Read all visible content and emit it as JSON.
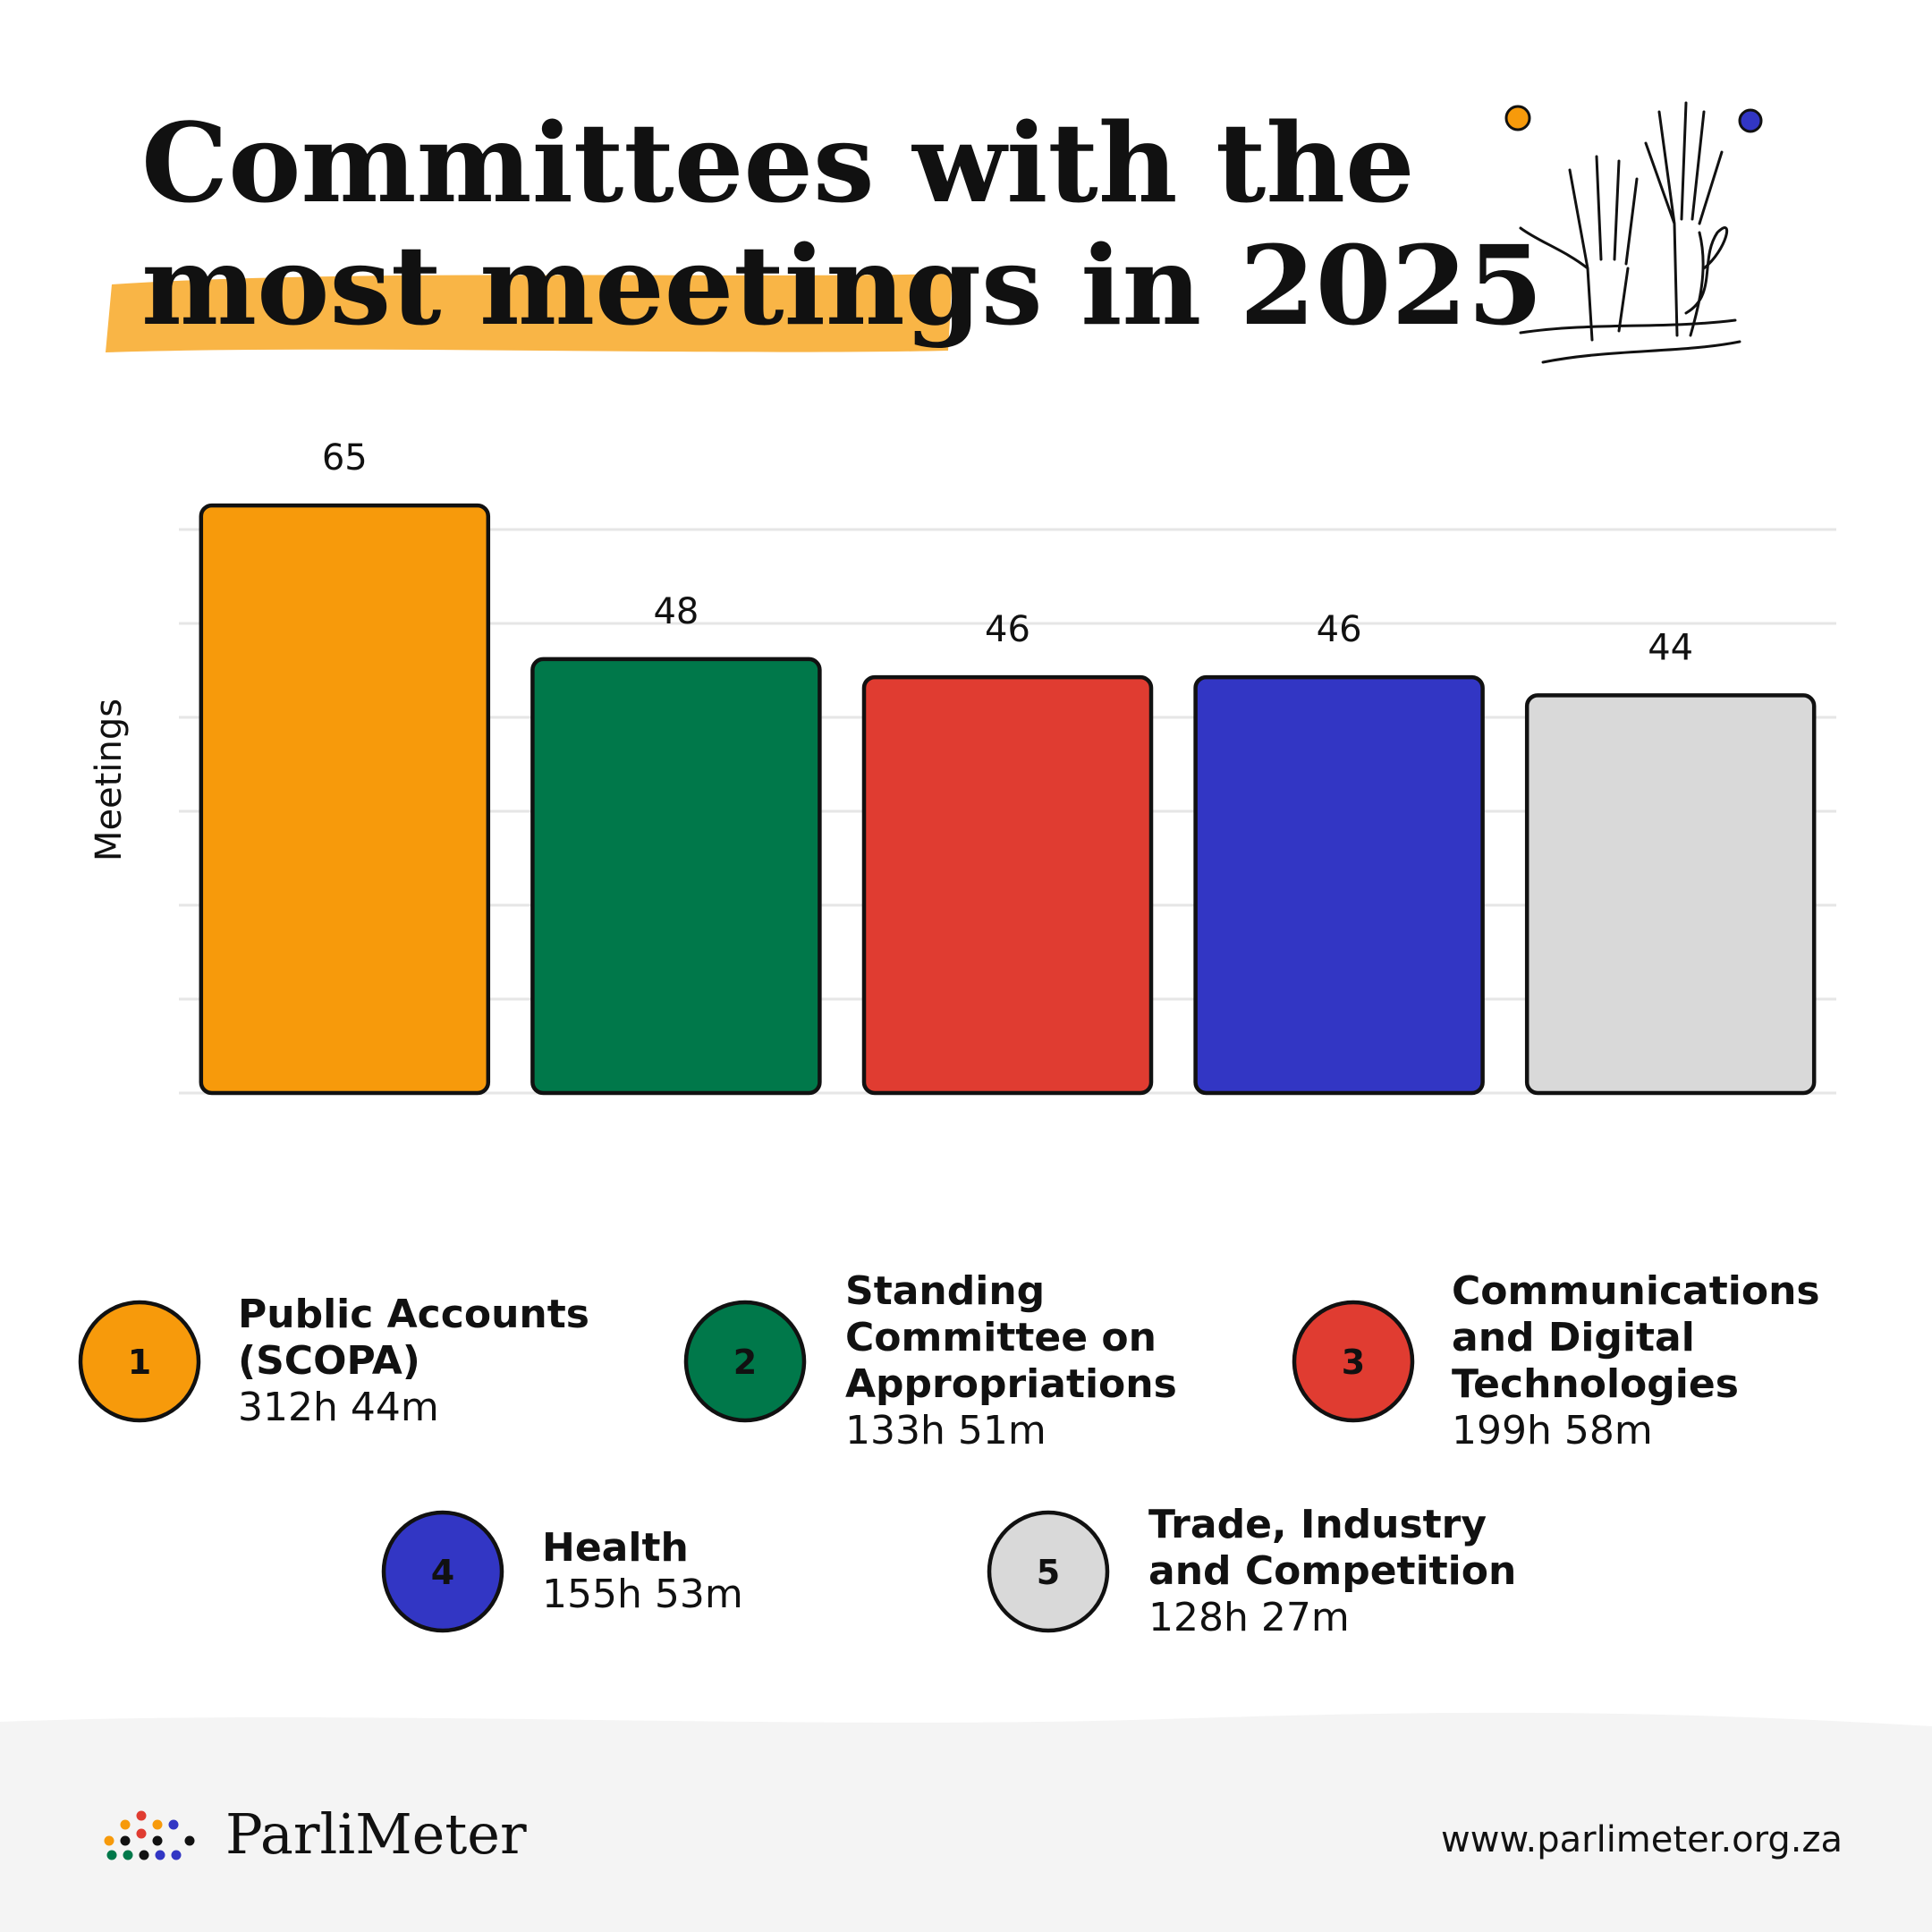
{
  "chart_data": {
    "type": "bar",
    "title_lines": [
      "Committees with the",
      "most meetings",
      "in 2025"
    ],
    "y_label": "Meetings",
    "categories": [
      "Public Accounts (SCOPA)",
      "Standing Committee on Appropriations",
      "Communications and Digital Technologies",
      "Health",
      "Trade, Industry and Competition"
    ],
    "values": [
      65,
      48,
      46,
      46,
      44
    ],
    "ranks": [
      1,
      2,
      3,
      4,
      5
    ],
    "durations": [
      "312h 44m",
      "133h 51m",
      "199h 58m",
      "155h 53m",
      "128h 27m"
    ],
    "colors": [
      "#f79a0b",
      "#00784a",
      "#e03c31",
      "#3236c4",
      "#d9d9d9"
    ],
    "ylim": [
      0,
      66
    ],
    "grid": true,
    "brand": "ParliMeter",
    "url": "www.parlimeter.org.za"
  }
}
